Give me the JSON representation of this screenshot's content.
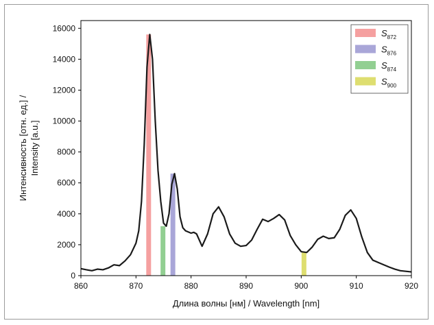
{
  "chart_data": {
    "type": "line",
    "xlabel": "Длина волны [нм] / Wavelength [nm]",
    "ylabel_line1": "Интенсивность [отн. ед.] /",
    "ylabel_line2": "Intensity [a.u.]",
    "xlim": [
      860,
      920
    ],
    "ylim": [
      0,
      16500
    ],
    "xticks": [
      860,
      870,
      880,
      890,
      900,
      910,
      920
    ],
    "yticks": [
      0,
      2000,
      4000,
      6000,
      8000,
      10000,
      12000,
      14000,
      16000
    ],
    "grid": false,
    "legend_position": "top-right",
    "series": [
      {
        "color": "#1a1a1a",
        "x": [
          860,
          861,
          862,
          863,
          864,
          865,
          866,
          867,
          868,
          869,
          870,
          870.5,
          871,
          871.5,
          872,
          872.5,
          873,
          873.5,
          874,
          874.5,
          875,
          875.5,
          876,
          876.5,
          877,
          877.5,
          878,
          878.5,
          879,
          880,
          880.5,
          881,
          882,
          883,
          884,
          885,
          886,
          887,
          888,
          889,
          890,
          891,
          892,
          893,
          894,
          895,
          896,
          897,
          898,
          899,
          900,
          901,
          902,
          903,
          904,
          905,
          906,
          907,
          908,
          909,
          910,
          911,
          912,
          913,
          914,
          915,
          916,
          917,
          918,
          919,
          920
        ],
        "y": [
          450,
          380,
          320,
          420,
          380,
          500,
          700,
          650,
          950,
          1350,
          2100,
          2900,
          4800,
          8500,
          13500,
          15600,
          14000,
          10000,
          6800,
          4800,
          3400,
          3200,
          4000,
          5900,
          6600,
          5600,
          3800,
          3100,
          2900,
          2750,
          2800,
          2700,
          1900,
          2700,
          4000,
          4450,
          3800,
          2700,
          2100,
          1900,
          1950,
          2300,
          3000,
          3650,
          3500,
          3700,
          3950,
          3600,
          2600,
          2000,
          1550,
          1500,
          1850,
          2350,
          2550,
          2400,
          2450,
          3000,
          3900,
          4250,
          3700,
          2500,
          1500,
          1000,
          850,
          700,
          550,
          420,
          320,
          280,
          240
        ]
      }
    ],
    "bars": [
      {
        "label": "S",
        "sub": "872",
        "x": 872.3,
        "value": 15600,
        "color": "#f5a0a0"
      },
      {
        "label": "S",
        "sub": "876",
        "x": 876.7,
        "value": 6600,
        "color": "#a9a6d8"
      },
      {
        "label": "S",
        "sub": "874",
        "x": 874.9,
        "value": 3200,
        "color": "#92cf92"
      },
      {
        "label": "S",
        "sub": "900",
        "x": 900.5,
        "value": 1500,
        "color": "#dede70"
      }
    ]
  }
}
